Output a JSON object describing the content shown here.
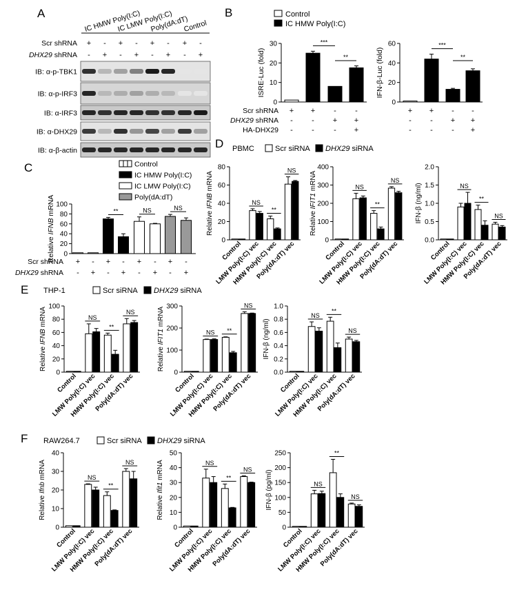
{
  "panel_labels": {
    "A": "A",
    "B": "B",
    "C": "C",
    "D": "D",
    "E": "E",
    "F": "F"
  },
  "common": {
    "scr_shrna": "Scr shRNA",
    "dhx29_shrna": "DHX29",
    "shrna_suffix": " shRNA",
    "ha_dhx29": "HA-DHX29",
    "plus": "+",
    "minus": "-",
    "sig2": "**",
    "sig3": "***",
    "ns": "NS",
    "scr_sirna": "Scr siRNA",
    "dhx29_sirna": "DHX29",
    "sirna_suffix": " siRNA",
    "categories": [
      "Control",
      "LMW Poly(I:C) vec",
      "HMW Poly(I:C) vec",
      "Poly(dA:dT) vec"
    ]
  },
  "panel_a": {
    "treatments": [
      "IC HMW Poly(I:C)",
      "IC LMW Poly(I:C)",
      "Poly(dA:dT)",
      "Control"
    ],
    "blots": [
      "IB: α-p-TBK1",
      "IB: α-p-IRF3",
      "IB: α-IRF3",
      "IB: α-DHX29",
      "IB: α-β-actin"
    ]
  },
  "panel_b": {
    "legend": [
      "Control",
      "IC HMW Poly(I:C)"
    ],
    "charts": [
      {
        "ylabel": "ISRE-Luc (fold)",
        "yticks": [
          "0",
          "10",
          "20",
          "30"
        ],
        "ymax": 30,
        "values": [
          1,
          25,
          8,
          17.5
        ],
        "errors": [
          0,
          1,
          0,
          1
        ]
      },
      {
        "ylabel": "IFN-β-Luc (fold)",
        "yticks": [
          "0",
          "20",
          "40",
          "60"
        ],
        "ymax": 60,
        "values": [
          1,
          44,
          13,
          32
        ],
        "errors": [
          0,
          5,
          1,
          2
        ]
      }
    ],
    "scr": [
      "+",
      "+",
      "-",
      "-"
    ],
    "dhx": [
      "-",
      "-",
      "+",
      "+"
    ],
    "ha": [
      "-",
      "-",
      "-",
      "+"
    ]
  },
  "panel_c": {
    "legend": [
      "Control",
      "IC HMW Poly(I:C)",
      "IC LMW Poly(I:C)",
      "Poly(dA:dT)"
    ],
    "ylabel": "Relative IFNB mRNA",
    "ylabel_italic": "IFNB",
    "yticks": [
      "0",
      "20",
      "40",
      "60",
      "80",
      "100"
    ],
    "scr": [
      "+",
      "-",
      "+",
      "-",
      "+",
      "-",
      "+",
      "-"
    ],
    "dhx": [
      "-",
      "+",
      "-",
      "+",
      "-",
      "+",
      "-",
      "+"
    ]
  },
  "panel_d": {
    "cell": "PBMC",
    "charts": [
      {
        "ylabel": "Relative IFNB mRNA",
        "ylabel_italic": "IFNB",
        "yticks": [
          "0",
          "20",
          "40",
          "60",
          "80"
        ],
        "ymax": 80
      },
      {
        "ylabel": "Relative IFIT1 mRNA",
        "ylabel_italic": "IFIT1",
        "yticks": [
          "0",
          "100",
          "200",
          "300",
          "400"
        ],
        "ymax": 400
      },
      {
        "ylabel": "IFN-β (ng/ml)",
        "ylabel_italic": "",
        "yticks": [
          "0.0",
          "0.5",
          "1.0",
          "1.5",
          "2.0"
        ],
        "ymax": 2.0
      }
    ]
  },
  "panel_e": {
    "cell": "THP-1",
    "charts": [
      {
        "ylabel": "Relative IFNB mRNA",
        "ylabel_italic": "IFNB",
        "yticks": [
          "0",
          "20",
          "40",
          "60",
          "80",
          "100"
        ],
        "ymax": 100
      },
      {
        "ylabel": "Relative IFIT1 mRNA",
        "ylabel_italic": "IFIT1",
        "yticks": [
          "0",
          "100",
          "200",
          "300"
        ],
        "ymax": 300
      },
      {
        "ylabel": "IFN-β (ng/ml)",
        "ylabel_italic": "",
        "yticks": [
          "0.0",
          "0.2",
          "0.4",
          "0.6",
          "0.8",
          "1.0"
        ],
        "ymax": 1.0
      }
    ]
  },
  "panel_f": {
    "cell": "RAW264.7",
    "charts": [
      {
        "ylabel": "Relative Ifnb mRNA",
        "ylabel_italic": "Ifnb",
        "yticks": [
          "0",
          "10",
          "20",
          "30",
          "40"
        ],
        "ymax": 40
      },
      {
        "ylabel": "Relative Ifit1 mRNA",
        "ylabel_italic": "Ifit1",
        "yticks": [
          "0",
          "10",
          "20",
          "30",
          "40",
          "50"
        ],
        "ymax": 50
      },
      {
        "ylabel": "IFN-β (pg/ml)",
        "ylabel_italic": "",
        "yticks": [
          "0",
          "50",
          "100",
          "150",
          "200",
          "250"
        ],
        "ymax": 250
      }
    ]
  },
  "chart_data": [
    {
      "id": "B1",
      "type": "bar",
      "title": "",
      "ylabel": "ISRE-Luc (fold)",
      "ylim": [
        0,
        30
      ],
      "series": [
        {
          "name": "Control",
          "values": [
            1,
            null,
            null,
            null
          ]
        },
        {
          "name": "IC HMW Poly(I:C)",
          "values": [
            null,
            25,
            8,
            17.5
          ]
        }
      ],
      "errors": [
        0,
        1,
        0,
        1
      ],
      "annotations": [
        "***",
        "**"
      ]
    },
    {
      "id": "B2",
      "type": "bar",
      "title": "",
      "ylabel": "IFN-β-Luc (fold)",
      "ylim": [
        0,
        60
      ],
      "series": [
        {
          "name": "Control",
          "values": [
            1,
            null,
            null,
            null
          ]
        },
        {
          "name": "IC HMW Poly(I:C)",
          "values": [
            null,
            44,
            13,
            32
          ]
        }
      ],
      "errors": [
        0,
        5,
        1,
        2
      ],
      "annotations": [
        "***",
        "**"
      ]
    },
    {
      "id": "C",
      "type": "bar",
      "ylabel": "Relative IFNB mRNA",
      "ylim": [
        0,
        100
      ],
      "values": [
        0.5,
        0.5,
        70,
        34,
        65,
        60,
        75,
        67
      ],
      "errors": [
        0,
        0,
        3,
        6,
        9,
        1,
        4,
        5
      ],
      "colors": [
        "#fff",
        "#fff",
        "#000",
        "#000",
        "#fff",
        "#fff",
        "#999",
        "#999"
      ],
      "annotations": [
        "**",
        "NS",
        "NS"
      ]
    },
    {
      "id": "D1",
      "type": "bar",
      "ylabel": "Relative IFNB mRNA",
      "ylim": [
        0,
        80
      ],
      "categories": [
        "Control",
        "LMW Poly(I:C) vec",
        "HMW Poly(I:C) vec",
        "Poly(dA:dT) vec"
      ],
      "series": [
        {
          "name": "Scr siRNA",
          "values": [
            0.5,
            32,
            23,
            61
          ],
          "errors": [
            0,
            2,
            3,
            8
          ]
        },
        {
          "name": "DHX29 siRNA",
          "values": [
            0.5,
            29,
            12,
            64
          ],
          "errors": [
            0,
            2,
            1,
            1
          ]
        }
      ],
      "sig": [
        "NS",
        "**",
        "NS"
      ]
    },
    {
      "id": "D2",
      "type": "bar",
      "ylabel": "Relative IFIT1 mRNA",
      "ylim": [
        0,
        400
      ],
      "categories": [
        "Control",
        "LMW Poly(I:C) vec",
        "HMW Poly(I:C) vec",
        "Poly(dA:dT) vec"
      ],
      "series": [
        {
          "name": "Scr siRNA",
          "values": [
            1,
            225,
            145,
            283
          ],
          "errors": [
            0,
            30,
            15,
            8
          ]
        },
        {
          "name": "DHX29 siRNA",
          "values": [
            1,
            230,
            60,
            258
          ],
          "errors": [
            0,
            10,
            10,
            8
          ]
        }
      ],
      "sig": [
        "NS",
        "**",
        "NS"
      ]
    },
    {
      "id": "D3",
      "type": "bar",
      "ylabel": "IFN-β (ng/ml)",
      "ylim": [
        0,
        2.0
      ],
      "categories": [
        "Control",
        "LMW Poly(I:C) vec",
        "HMW Poly(I:C) vec",
        "Poly(dA:dT) vec"
      ],
      "series": [
        {
          "name": "Scr siRNA",
          "values": [
            0.02,
            0.9,
            0.83,
            0.43
          ],
          "errors": [
            0,
            0.1,
            0.12,
            0.05
          ]
        },
        {
          "name": "DHX29 siRNA",
          "values": [
            0.02,
            1.0,
            0.4,
            0.35
          ],
          "errors": [
            0,
            0.3,
            0.12,
            0.04
          ]
        }
      ],
      "sig": [
        "NS",
        "**",
        "NS"
      ]
    },
    {
      "id": "E1",
      "type": "bar",
      "ylabel": "Relative IFNB mRNA",
      "ylim": [
        0,
        100
      ],
      "categories": [
        "Control",
        "LMW Poly(I:C) vec",
        "HMW Poly(I:C) vec",
        "Poly(dA:dT) vec"
      ],
      "series": [
        {
          "name": "Scr siRNA",
          "values": [
            1,
            58,
            56,
            73
          ],
          "errors": [
            0,
            15,
            3,
            8
          ]
        },
        {
          "name": "DHX29 siRNA",
          "values": [
            1,
            61,
            27,
            75
          ],
          "errors": [
            0,
            5,
            6,
            3
          ]
        }
      ],
      "sig": [
        "NS",
        "**",
        "NS"
      ]
    },
    {
      "id": "E2",
      "type": "bar",
      "ylabel": "Relative IFIT1 mRNA",
      "ylim": [
        0,
        300
      ],
      "categories": [
        "Control",
        "LMW Poly(I:C) vec",
        "HMW Poly(I:C) vec",
        "Poly(dA:dT) vec"
      ],
      "series": [
        {
          "name": "Scr siRNA",
          "values": [
            1,
            148,
            158,
            266
          ],
          "errors": [
            0,
            2,
            2,
            8
          ]
        },
        {
          "name": "DHX29 siRNA",
          "values": [
            1,
            148,
            88,
            266
          ],
          "errors": [
            0,
            3,
            6,
            2
          ]
        }
      ],
      "sig": [
        "NS",
        "**",
        "NS"
      ]
    },
    {
      "id": "E3",
      "type": "bar",
      "ylabel": "IFN-β (ng/ml)",
      "ylim": [
        0,
        1.0
      ],
      "categories": [
        "Control",
        "LMW Poly(I:C) vec",
        "HMW Poly(I:C) vec",
        "Poly(dA:dT) vec"
      ],
      "series": [
        {
          "name": "Scr siRNA",
          "values": [
            0.005,
            0.69,
            0.77,
            0.5
          ],
          "errors": [
            0,
            0.07,
            0.06,
            0.03
          ]
        },
        {
          "name": "DHX29 siRNA",
          "values": [
            0.005,
            0.62,
            0.37,
            0.46
          ],
          "errors": [
            0,
            0.05,
            0.07,
            0.02
          ]
        }
      ],
      "sig": [
        "NS",
        "**",
        "NS"
      ]
    },
    {
      "id": "F1",
      "type": "bar",
      "ylabel": "Relative Ifnb mRNA",
      "ylim": [
        0,
        40
      ],
      "categories": [
        "Control",
        "LMW Poly(I:C) vec",
        "HMW Poly(I:C) vec",
        "Poly(dA:dT) vec"
      ],
      "series": [
        {
          "name": "Scr siRNA",
          "values": [
            0.8,
            23,
            17,
            30
          ],
          "errors": [
            0,
            0.3,
            2,
            1.5
          ]
        },
        {
          "name": "DHX29 siRNA",
          "values": [
            0.8,
            20,
            9,
            26
          ],
          "errors": [
            0,
            1.5,
            0.3,
            4
          ]
        }
      ],
      "sig": [
        "NS",
        "**",
        "NS"
      ]
    },
    {
      "id": "F2",
      "type": "bar",
      "ylabel": "Relative Ifit1 mRNA",
      "ylim": [
        0,
        50
      ],
      "categories": [
        "Control",
        "LMW Poly(I:C) vec",
        "HMW Poly(I:C) vec",
        "Poly(dA:dT) vec"
      ],
      "series": [
        {
          "name": "Scr siRNA",
          "values": [
            0.8,
            33,
            26,
            34
          ],
          "errors": [
            0,
            6,
            3,
            0.5
          ]
        },
        {
          "name": "DHX29 siRNA",
          "values": [
            0.8,
            30,
            13,
            30
          ],
          "errors": [
            0,
            4,
            0.3,
            0.3
          ]
        }
      ],
      "sig": [
        "NS",
        "**",
        "NS"
      ]
    },
    {
      "id": "F3",
      "type": "bar",
      "ylabel": "IFN-β (pg/ml)",
      "ylim": [
        0,
        250
      ],
      "categories": [
        "Control",
        "LMW Poly(I:C) vec",
        "HMW Poly(I:C) vec",
        "Poly(dA:dT) vec"
      ],
      "series": [
        {
          "name": "Scr siRNA",
          "values": [
            0.5,
            112,
            183,
            78
          ],
          "errors": [
            0,
            12,
            45,
            3
          ]
        },
        {
          "name": "DHX29 siRNA",
          "values": [
            0.5,
            113,
            100,
            70
          ],
          "errors": [
            0,
            8,
            12,
            5
          ]
        }
      ],
      "sig": [
        "NS",
        "**",
        "NS"
      ]
    }
  ]
}
